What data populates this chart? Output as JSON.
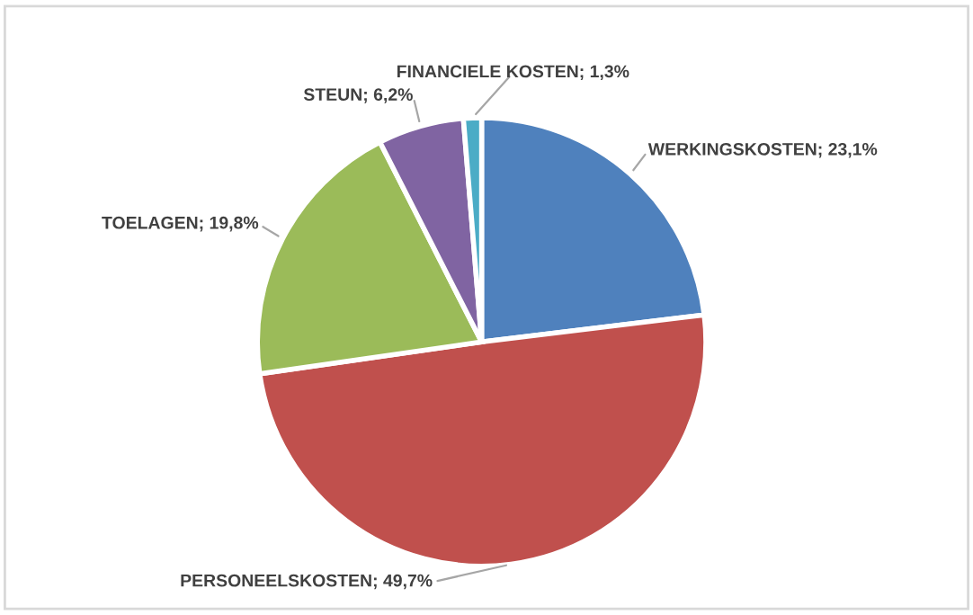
{
  "chart_data": {
    "type": "pie",
    "categories": [
      "WERKINGSKOSTEN",
      "PERSONEELSKOSTEN",
      "TOELAGEN",
      "STEUN",
      "FINANCIELE KOSTEN"
    ],
    "values": [
      23.1,
      49.7,
      19.8,
      6.2,
      1.3
    ],
    "value_labels": [
      "23,1%",
      "49,7%",
      "19,8%",
      "6,2%",
      "1,3%"
    ],
    "colors": [
      "#4f81bd",
      "#c0504d",
      "#9bbb59",
      "#8064a2",
      "#4bacc6"
    ],
    "legend": false
  }
}
